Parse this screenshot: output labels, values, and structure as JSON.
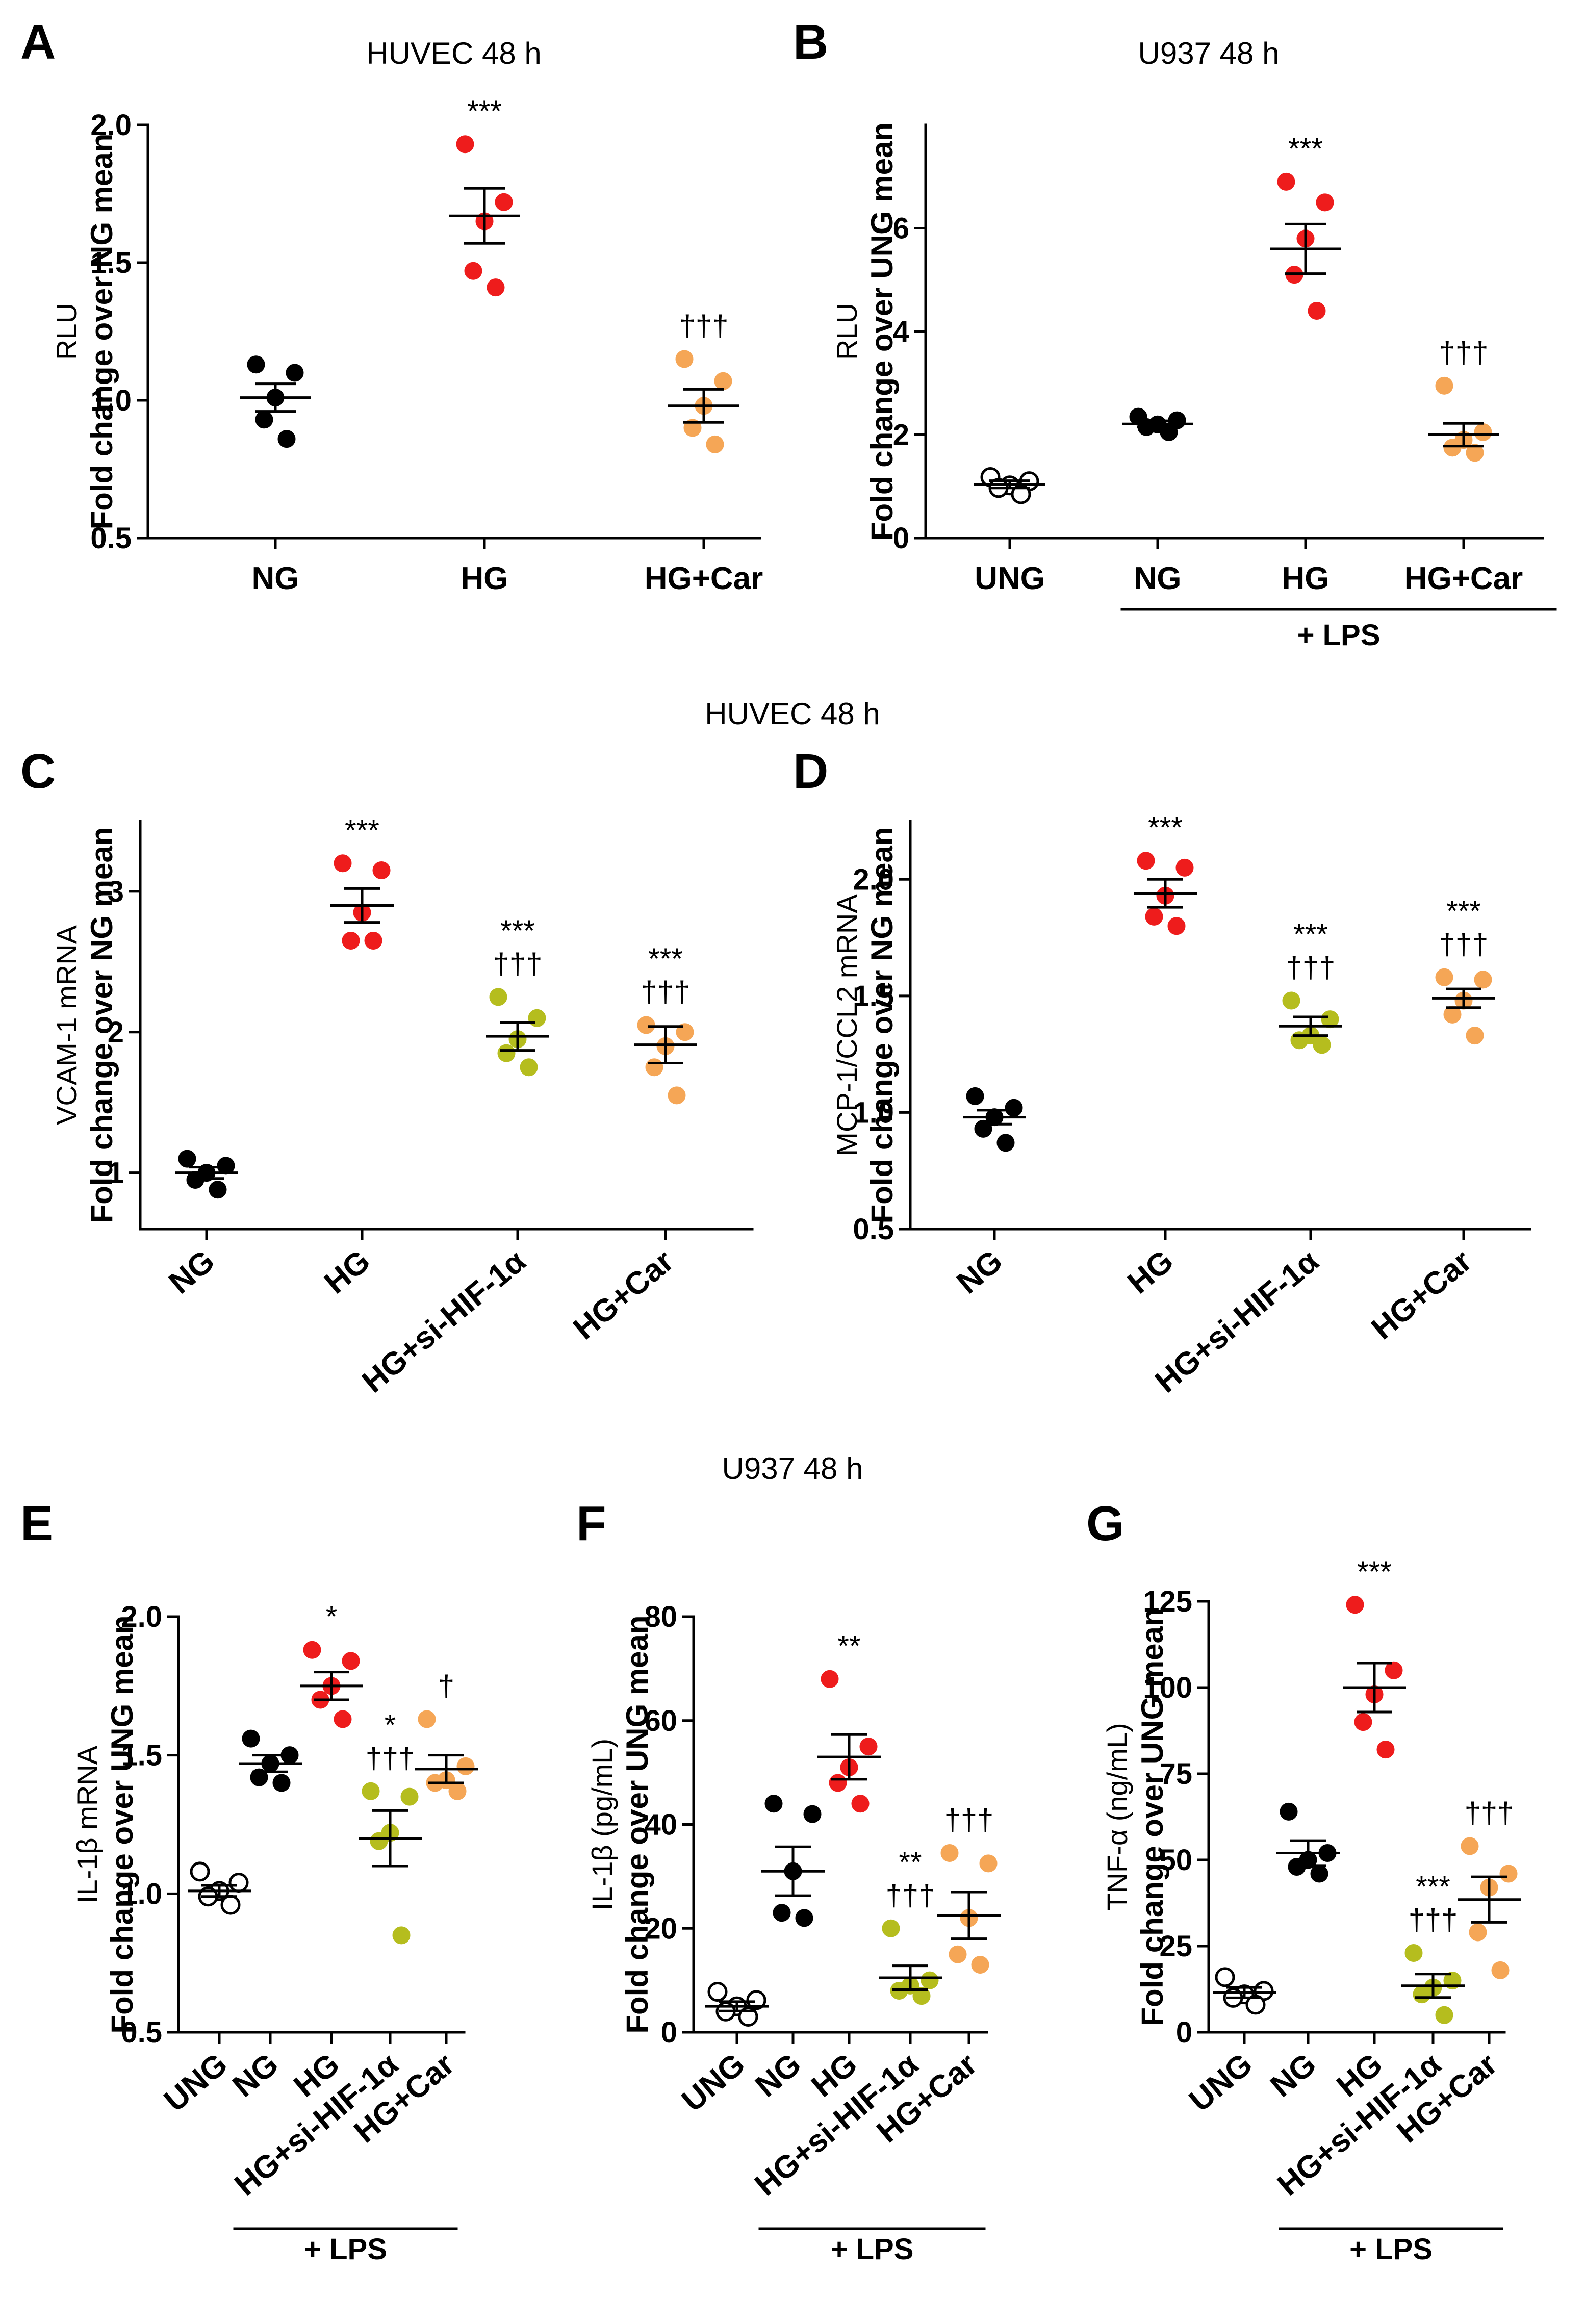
{
  "sections": {
    "bc_title": "HUVEC 48 h",
    "efg_title": "U937 48 h"
  },
  "lps_label": "+ LPS",
  "colors": {
    "UNG": "#ffffff",
    "NG": "#000000",
    "HG": "#ee1c1c",
    "si": "#b5bd1e",
    "Car": "#f5a656"
  },
  "chart_data": [
    {
      "id": "A",
      "type": "scatter",
      "letter": "A",
      "title": "HUVEC 48 h",
      "ylabel_main": "Fold change over NG mean",
      "ylabel_sub": "RLU",
      "ylim": [
        0.5,
        2.0
      ],
      "yticks": [
        "0.5",
        "1.0",
        "1.5",
        "2.0"
      ],
      "categories": [
        "NG",
        "HG",
        "HG+Car"
      ],
      "groups": [
        "NG",
        "HG",
        "Car"
      ],
      "points": [
        [
          1.13,
          1.1,
          1.01,
          0.93,
          0.86
        ],
        [
          1.93,
          1.72,
          1.65,
          1.47,
          1.41
        ],
        [
          1.15,
          1.07,
          0.98,
          0.9,
          0.84
        ]
      ],
      "mean": [
        1.01,
        1.67,
        0.98
      ],
      "sem": [
        0.05,
        0.1,
        0.06
      ],
      "sig": [
        "",
        "***",
        "†††"
      ]
    },
    {
      "id": "B",
      "type": "scatter",
      "letter": "B",
      "title": "U937 48 h",
      "ylabel_main": "Fold change over UNG mean",
      "ylabel_sub": "RLU",
      "ylim": [
        0,
        8
      ],
      "yticks": [
        "0",
        "2",
        "4",
        "6"
      ],
      "categories": [
        "UNG",
        "NG",
        "HG",
        "HG+Car"
      ],
      "groups": [
        "UNG",
        "NG",
        "HG",
        "Car"
      ],
      "points": [
        [
          1.18,
          1.1,
          1.02,
          0.97,
          0.85
        ],
        [
          2.35,
          2.28,
          2.2,
          2.15,
          2.05
        ],
        [
          6.9,
          6.5,
          5.8,
          5.1,
          4.4
        ],
        [
          2.95,
          2.05,
          1.9,
          1.75,
          1.65
        ]
      ],
      "mean": [
        1.04,
        2.21,
        5.6,
        2.0
      ],
      "sem": [
        0.07,
        0.06,
        0.48,
        0.22
      ],
      "sig": [
        "",
        "",
        "***",
        "†††"
      ],
      "lps_from": 1
    },
    {
      "id": "C",
      "type": "scatter",
      "letter": "C",
      "ylabel_main": "Fold change over NG mean",
      "ylabel_sub": "VCAM-1 mRNA",
      "ylim": [
        0.6,
        3.5
      ],
      "yticks": [
        "1",
        "2",
        "3"
      ],
      "categories": [
        "NG",
        "HG",
        "HG+si-HIF-1α",
        "HG+Car"
      ],
      "groups": [
        "NG",
        "HG",
        "si",
        "Car"
      ],
      "points": [
        [
          1.1,
          1.05,
          1.0,
          0.95,
          0.88
        ],
        [
          3.2,
          3.15,
          2.85,
          2.65,
          2.65
        ],
        [
          2.25,
          2.1,
          1.95,
          1.85,
          1.75
        ],
        [
          2.05,
          2.0,
          1.9,
          1.75,
          1.55
        ]
      ],
      "mean": [
        1.0,
        2.9,
        1.97,
        1.91
      ],
      "sem": [
        0.04,
        0.12,
        0.1,
        0.13
      ],
      "sig": [
        "",
        "***",
        "***\n†††",
        "***\n†††"
      ]
    },
    {
      "id": "D",
      "type": "scatter",
      "letter": "D",
      "ylabel_main": "Fold change over NG mean",
      "ylabel_sub": "MCP-1/CCL2 mRNA",
      "ylim": [
        0.5,
        2.25
      ],
      "yticks": [
        "0.5",
        "1.0",
        "1.5",
        "2.0"
      ],
      "categories": [
        "NG",
        "HG",
        "HG+si-HIF-1α",
        "HG+Car"
      ],
      "groups": [
        "NG",
        "HG",
        "si",
        "Car"
      ],
      "points": [
        [
          1.07,
          1.02,
          0.98,
          0.93,
          0.87
        ],
        [
          2.08,
          2.05,
          1.93,
          1.84,
          1.8
        ],
        [
          1.48,
          1.4,
          1.33,
          1.31,
          1.29
        ],
        [
          1.58,
          1.57,
          1.48,
          1.42,
          1.33
        ]
      ],
      "mean": [
        0.98,
        1.94,
        1.37,
        1.49
      ],
      "sem": [
        0.03,
        0.06,
        0.04,
        0.04
      ],
      "sig": [
        "",
        "***",
        "***\n†††",
        "***\n†††"
      ]
    },
    {
      "id": "E",
      "type": "scatter",
      "letter": "E",
      "ylabel_main": "Fold change over UNG mean",
      "ylabel_sub": "IL-1β mRNA",
      "ylim": [
        0.5,
        2.0
      ],
      "yticks": [
        "0.5",
        "1.0",
        "1.5",
        "2.0"
      ],
      "categories": [
        "UNG",
        "NG",
        "HG",
        "HG+si-HIF-1α",
        "HG+Car"
      ],
      "groups": [
        "UNG",
        "NG",
        "HG",
        "si",
        "Car"
      ],
      "points": [
        [
          1.08,
          1.04,
          1.01,
          0.99,
          0.96
        ],
        [
          1.56,
          1.5,
          1.47,
          1.42,
          1.4
        ],
        [
          1.88,
          1.84,
          1.75,
          1.7,
          1.63
        ],
        [
          1.37,
          1.35,
          1.22,
          1.19,
          0.85
        ],
        [
          1.63,
          1.46,
          1.41,
          1.4,
          1.37
        ]
      ],
      "mean": [
        1.01,
        1.47,
        1.75,
        1.2,
        1.45
      ],
      "sem": [
        0.02,
        0.03,
        0.05,
        0.1,
        0.05
      ],
      "sig": [
        "",
        "",
        "*",
        "*\n†††",
        "†"
      ],
      "lps_from": 1
    },
    {
      "id": "F",
      "type": "scatter",
      "letter": "F",
      "ylabel_main": "Fold change over UNG mean",
      "ylabel_sub": "IL-1β (pg/mL)",
      "ylim": [
        0,
        80
      ],
      "yticks": [
        "0",
        "20",
        "40",
        "60",
        "80"
      ],
      "categories": [
        "UNG",
        "NG",
        "HG",
        "HG+si-HIF-1α",
        "HG+Car"
      ],
      "groups": [
        "UNG",
        "NG",
        "HG",
        "si",
        "Car"
      ],
      "points": [
        [
          7.8,
          6.2,
          5.0,
          4.0,
          3.0
        ],
        [
          44.0,
          42.0,
          31.0,
          23.0,
          22.0
        ],
        [
          68.0,
          55.0,
          51.0,
          48.0,
          44.0
        ],
        [
          20.0,
          10.0,
          9.0,
          8.0,
          7.0
        ],
        [
          34.5,
          32.5,
          22.0,
          15.0,
          13.0
        ]
      ],
      "mean": [
        5.0,
        31.0,
        53.0,
        10.5,
        22.5
      ],
      "sem": [
        0.9,
        4.7,
        4.3,
        2.3,
        4.5
      ],
      "sig": [
        "",
        "",
        "**",
        "**\n†††",
        "†††"
      ],
      "lps_from": 1
    },
    {
      "id": "G",
      "type": "scatter",
      "letter": "G",
      "ylabel_main": "Fold change over UNG mean",
      "ylabel_sub": "TNF-α (ng/mL)",
      "ylim": [
        0,
        125
      ],
      "yticks": [
        "0",
        "25",
        "50",
        "75",
        "100",
        "125"
      ],
      "categories": [
        "UNG",
        "NG",
        "HG",
        "HG+si-HIF-1α",
        "HG+Car"
      ],
      "groups": [
        "UNG",
        "NG",
        "HG",
        "si",
        "Car"
      ],
      "points": [
        [
          16.0,
          12.0,
          11.0,
          10.0,
          8.0
        ],
        [
          64.0,
          52.0,
          50.0,
          48.0,
          46.0
        ],
        [
          124.0,
          105.0,
          98.0,
          90.0,
          82.0
        ],
        [
          23.0,
          15.0,
          13.0,
          11.0,
          5.0
        ],
        [
          54.0,
          46.0,
          42.0,
          29.0,
          18.0
        ]
      ],
      "mean": [
        11.5,
        52.0,
        100.0,
        13.5,
        38.5
      ],
      "sem": [
        1.5,
        3.6,
        7.1,
        3.4,
        6.6
      ],
      "sig": [
        "",
        "",
        "***",
        "***\n†††",
        "†††"
      ],
      "lps_from": 1
    }
  ]
}
